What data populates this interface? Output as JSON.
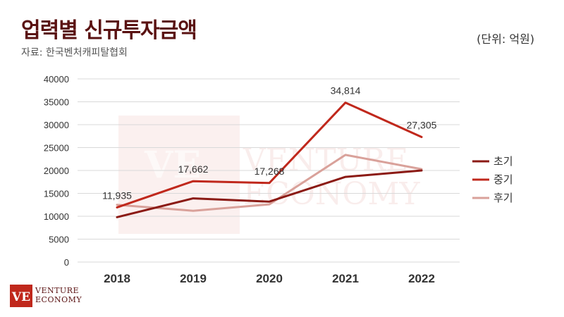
{
  "header": {
    "title": "업력별 신규투자금액",
    "source": "자료: 한국벤처캐피탈협회",
    "unit": "(단위: 억원)"
  },
  "watermark": {
    "line1": "VENTURE",
    "line2": "ECONOMY"
  },
  "logo": {
    "mark": "VE",
    "line1": "VENTURE",
    "line2": "ECONOMY"
  },
  "colors": {
    "early": "#8b1a14",
    "mid": "#c0281c",
    "late": "#d9a19a",
    "grid": "#d9d9d9",
    "axis_text": "#333333",
    "brand": "#c0281c"
  },
  "chart_data": {
    "type": "line",
    "categories": [
      "2018",
      "2019",
      "2020",
      "2021",
      "2022"
    ],
    "ylim": [
      0,
      40000
    ],
    "yticks": [
      "0",
      "5000",
      "10000",
      "15000",
      "20000",
      "25000",
      "30000",
      "35000",
      "40000"
    ],
    "grid": true,
    "legend_position": "right",
    "series": [
      {
        "name": "초기",
        "color": "#8b1a14",
        "values": [
          9800,
          13900,
          13200,
          18600,
          20000
        ]
      },
      {
        "name": "중기",
        "color": "#c0281c",
        "values": [
          11935,
          17662,
          17268,
          34814,
          27305
        ],
        "data_labels": [
          "11,935",
          "17,662",
          "17,268",
          "34,814",
          "27,305"
        ]
      },
      {
        "name": "후기",
        "color": "#d9a19a",
        "values": [
          12500,
          11200,
          12600,
          23400,
          20300
        ]
      }
    ]
  }
}
